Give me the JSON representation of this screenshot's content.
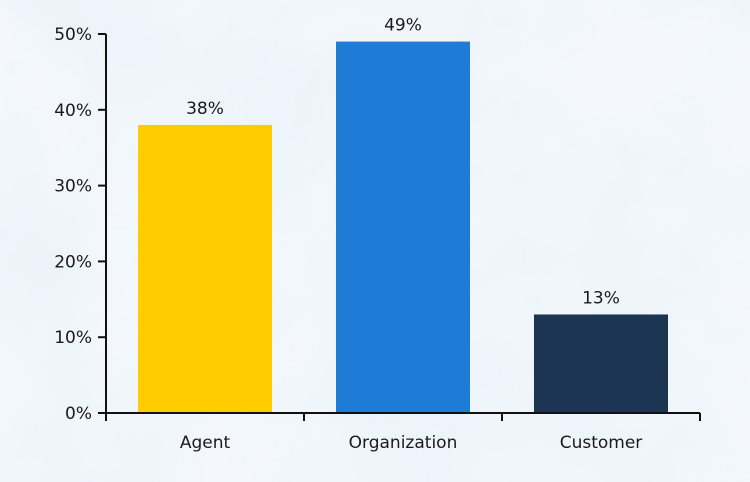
{
  "chart_data": {
    "type": "bar",
    "title": "",
    "xlabel": "",
    "ylabel": "",
    "categories": [
      "Agent",
      "Organization",
      "Customer"
    ],
    "values": [
      38,
      49,
      13
    ],
    "data_labels": [
      "38%",
      "49%",
      "13%"
    ],
    "bar_colors": [
      "#FFCC00",
      "#1E7BD6",
      "#1C3553"
    ],
    "ylim": [
      0,
      50
    ],
    "yticks": [
      0,
      10,
      20,
      30,
      40,
      50
    ],
    "ytick_labels": [
      "0%",
      "10%",
      "20%",
      "30%",
      "40%",
      "50%"
    ],
    "grid": false,
    "legend": "none",
    "background": "watercolor-light-blue"
  }
}
